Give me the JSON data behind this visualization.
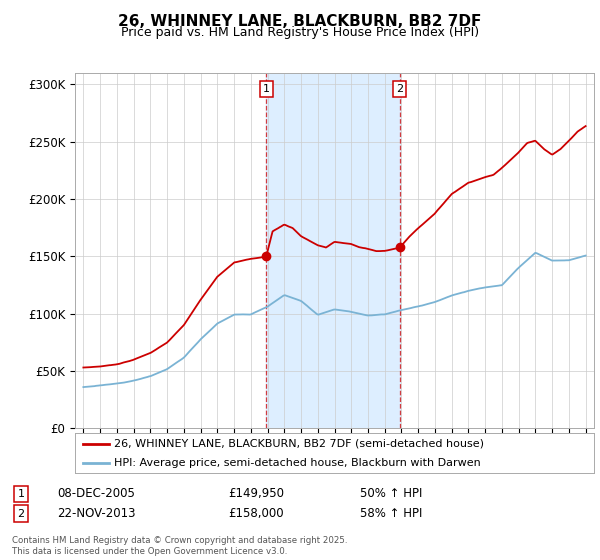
{
  "title": "26, WHINNEY LANE, BLACKBURN, BB2 7DF",
  "subtitle": "Price paid vs. HM Land Registry's House Price Index (HPI)",
  "legend_line1": "26, WHINNEY LANE, BLACKBURN, BB2 7DF (semi-detached house)",
  "legend_line2": "HPI: Average price, semi-detached house, Blackburn with Darwen",
  "yticks": [
    0,
    50000,
    100000,
    150000,
    200000,
    250000,
    300000
  ],
  "ytick_labels": [
    "£0",
    "£50K",
    "£100K",
    "£150K",
    "£200K",
    "£250K",
    "£300K"
  ],
  "red_color": "#cc0000",
  "blue_color": "#7ab3d4",
  "marker1_x": 2005.92,
  "marker2_x": 2013.9,
  "annotation1_date": "08-DEC-2005",
  "annotation1_price": "£149,950",
  "annotation1_hpi": "50% ↑ HPI",
  "annotation2_date": "22-NOV-2013",
  "annotation2_price": "£158,000",
  "annotation2_hpi": "58% ↑ HPI",
  "footer": "Contains HM Land Registry data © Crown copyright and database right 2025.\nThis data is licensed under the Open Government Licence v3.0.",
  "background_color": "#ffffff",
  "plot_bg_color": "#ffffff",
  "shaded_color": "#ddeeff",
  "xmin": 1994.5,
  "xmax": 2025.5,
  "ymin": 0,
  "ymax": 310000
}
